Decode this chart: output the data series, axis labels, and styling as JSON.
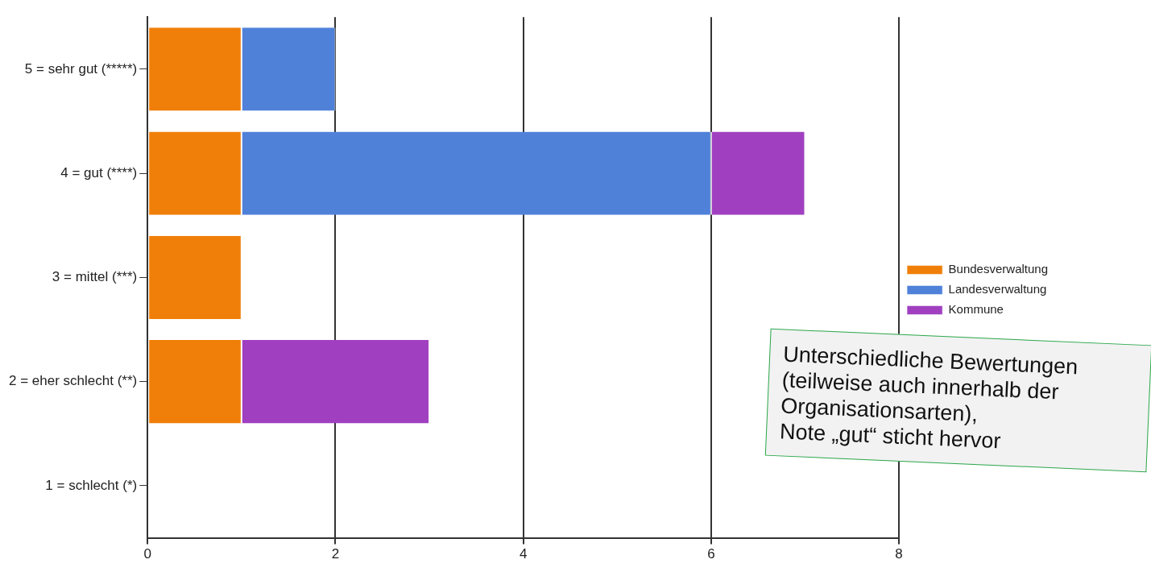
{
  "chart_data": {
    "type": "bar",
    "orientation": "horizontal",
    "stacked": true,
    "categories": [
      "5 = sehr gut (*****)",
      "4 = gut (****)",
      "3 = mittel (***)",
      "2 = eher schlecht (**)",
      "1 = schlecht (*)"
    ],
    "series": [
      {
        "name": "Bundesverwaltung",
        "color": "#f07f09",
        "values": [
          1,
          1,
          1,
          1,
          null
        ]
      },
      {
        "name": "Landesverwaltung",
        "color": "#4f81d9",
        "values": [
          1,
          5,
          null,
          null,
          null
        ]
      },
      {
        "name": "Kommune",
        "color": "#a040c0",
        "values": [
          null,
          1,
          null,
          2,
          null
        ]
      }
    ],
    "xlim": [
      0,
      8
    ],
    "xticks": [
      0,
      2,
      4,
      6,
      8
    ],
    "grid": "x",
    "legend": "right",
    "annotations": [
      "Unterschiedliche Bewertungen\n(teilweise auch innerhalb der\nOrganisationsarten),\nNote „gut“ sticht hervor"
    ]
  }
}
